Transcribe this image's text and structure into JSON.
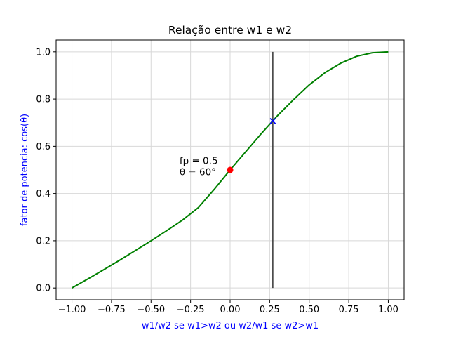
{
  "chart_data": {
    "type": "line",
    "title": "Relação entre w1 e w2",
    "xlabel": "w1/w2 se w1>w2 ou w2/w1 se w2>w1",
    "ylabel": "fator de potencia: cos(θ)",
    "xlim": [
      -1.1,
      1.1
    ],
    "ylim": [
      -0.05,
      1.05
    ],
    "x_ticks": [
      -1.0,
      -0.75,
      -0.5,
      -0.25,
      0.0,
      0.25,
      0.5,
      0.75,
      1.0
    ],
    "x_tick_labels": [
      "−1.00",
      "−0.75",
      "−0.50",
      "−0.25",
      "0.00",
      "0.25",
      "0.50",
      "0.75",
      "1.00"
    ],
    "y_ticks": [
      0.0,
      0.2,
      0.4,
      0.6,
      0.8,
      1.0
    ],
    "y_tick_labels": [
      "0.0",
      "0.2",
      "0.4",
      "0.6",
      "0.8",
      "1.0"
    ],
    "grid": true,
    "series": [
      {
        "color": "#008000",
        "x": [
          -1.0,
          -0.9,
          -0.8,
          -0.7,
          -0.6,
          -0.5,
          -0.4,
          -0.3,
          -0.2,
          -0.1,
          0.0,
          0.1,
          0.2,
          0.3,
          0.4,
          0.5,
          0.6,
          0.7,
          0.8,
          0.9,
          1.0
        ],
        "y": [
          0.0,
          0.038,
          0.077,
          0.117,
          0.158,
          0.2,
          0.243,
          0.288,
          0.341,
          0.418,
          0.5,
          0.578,
          0.656,
          0.73,
          0.797,
          0.86,
          0.912,
          0.952,
          0.981,
          0.996,
          1.0
        ]
      }
    ],
    "vertical_line": {
      "x": 0.27,
      "y_start": 0.0,
      "y_end": 1.0,
      "color": "#333333"
    },
    "markers": [
      {
        "x": 0.0,
        "y": 0.5,
        "shape": "circle",
        "color": "#ff0000"
      },
      {
        "x": 0.27,
        "y": 0.707,
        "shape": "x",
        "color": "#0000ff"
      }
    ],
    "annotations": [
      {
        "text": "fp = 0.5",
        "x": -0.32,
        "y": 0.525
      },
      {
        "text": "θ = 60°",
        "x": -0.32,
        "y": 0.478
      }
    ],
    "colors": {
      "xlabel": "#0000ff",
      "ylabel": "#0000ff",
      "grid": "#d8d8d8"
    }
  }
}
